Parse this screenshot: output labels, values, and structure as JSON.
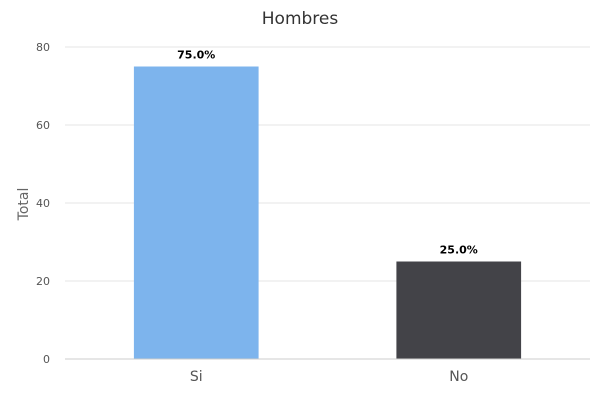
{
  "chart_data": {
    "type": "bar",
    "title": "Hombres",
    "ylabel": "Total",
    "xlabel": "",
    "categories": [
      "Si",
      "No"
    ],
    "values": [
      75,
      25
    ],
    "data_labels": [
      "75.0%",
      "25.0%"
    ],
    "colors": [
      "#7db4ed",
      "#434348"
    ],
    "ylim": [
      0,
      80
    ],
    "yticks": [
      0,
      20,
      40,
      60,
      80
    ],
    "grid": true,
    "legend": "none"
  }
}
